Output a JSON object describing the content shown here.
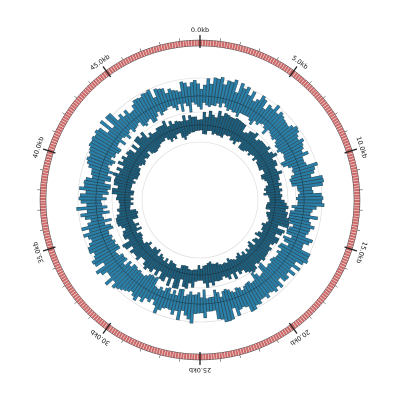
{
  "figure": {
    "type": "circular-genome-map",
    "genome_length_kb": 50,
    "tick_interval_kb": 5,
    "tick_labels": [
      "0.0kb",
      "5.0kb",
      "10.0kb",
      "15.0kb",
      "20.0kb",
      "25.0kb",
      "30.0kb",
      "35.0kb",
      "40.0kb",
      "45.0kb"
    ],
    "colors": {
      "feature_ring": "#cd6b6b",
      "ring_outline": "#444444",
      "track_outer": "#2a7fa8",
      "track_inner": "#1d5f7e",
      "bar_edge": "#0b1f2a",
      "guide_line": "#d8d8d8",
      "tick": "#222222"
    },
    "tracks": [
      {
        "id": "feature-ring",
        "kind": "feature-blocks"
      },
      {
        "id": "histogram-outer",
        "kind": "histogram",
        "bidirectional": true
      },
      {
        "id": "histogram-inner",
        "kind": "histogram",
        "bidirectional": true
      }
    ]
  }
}
